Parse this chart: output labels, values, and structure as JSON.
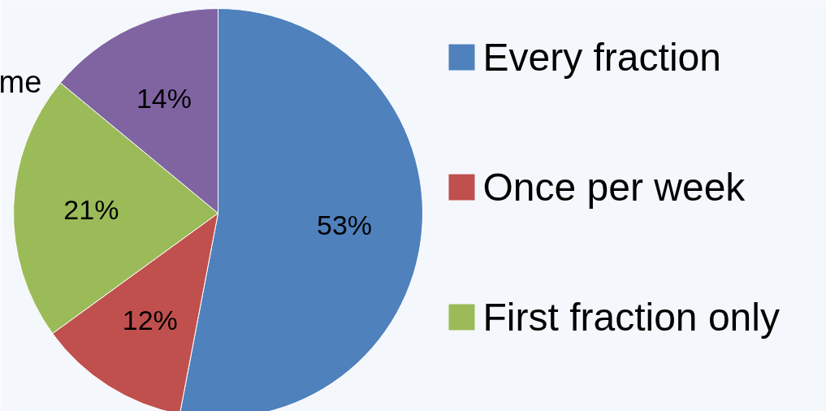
{
  "chart_data": {
    "type": "pie",
    "categories": [
      "Every fraction",
      "Once per week",
      "First fraction only",
      null
    ],
    "values": [
      53,
      12,
      21,
      14
    ],
    "colors": [
      "#4f81bd",
      "#c0504d",
      "#9bbb59",
      "#8064a2"
    ],
    "value_labels": [
      "53%",
      "12%",
      "21%",
      "14%"
    ],
    "legend": "right",
    "annotations": [
      "me"
    ]
  }
}
